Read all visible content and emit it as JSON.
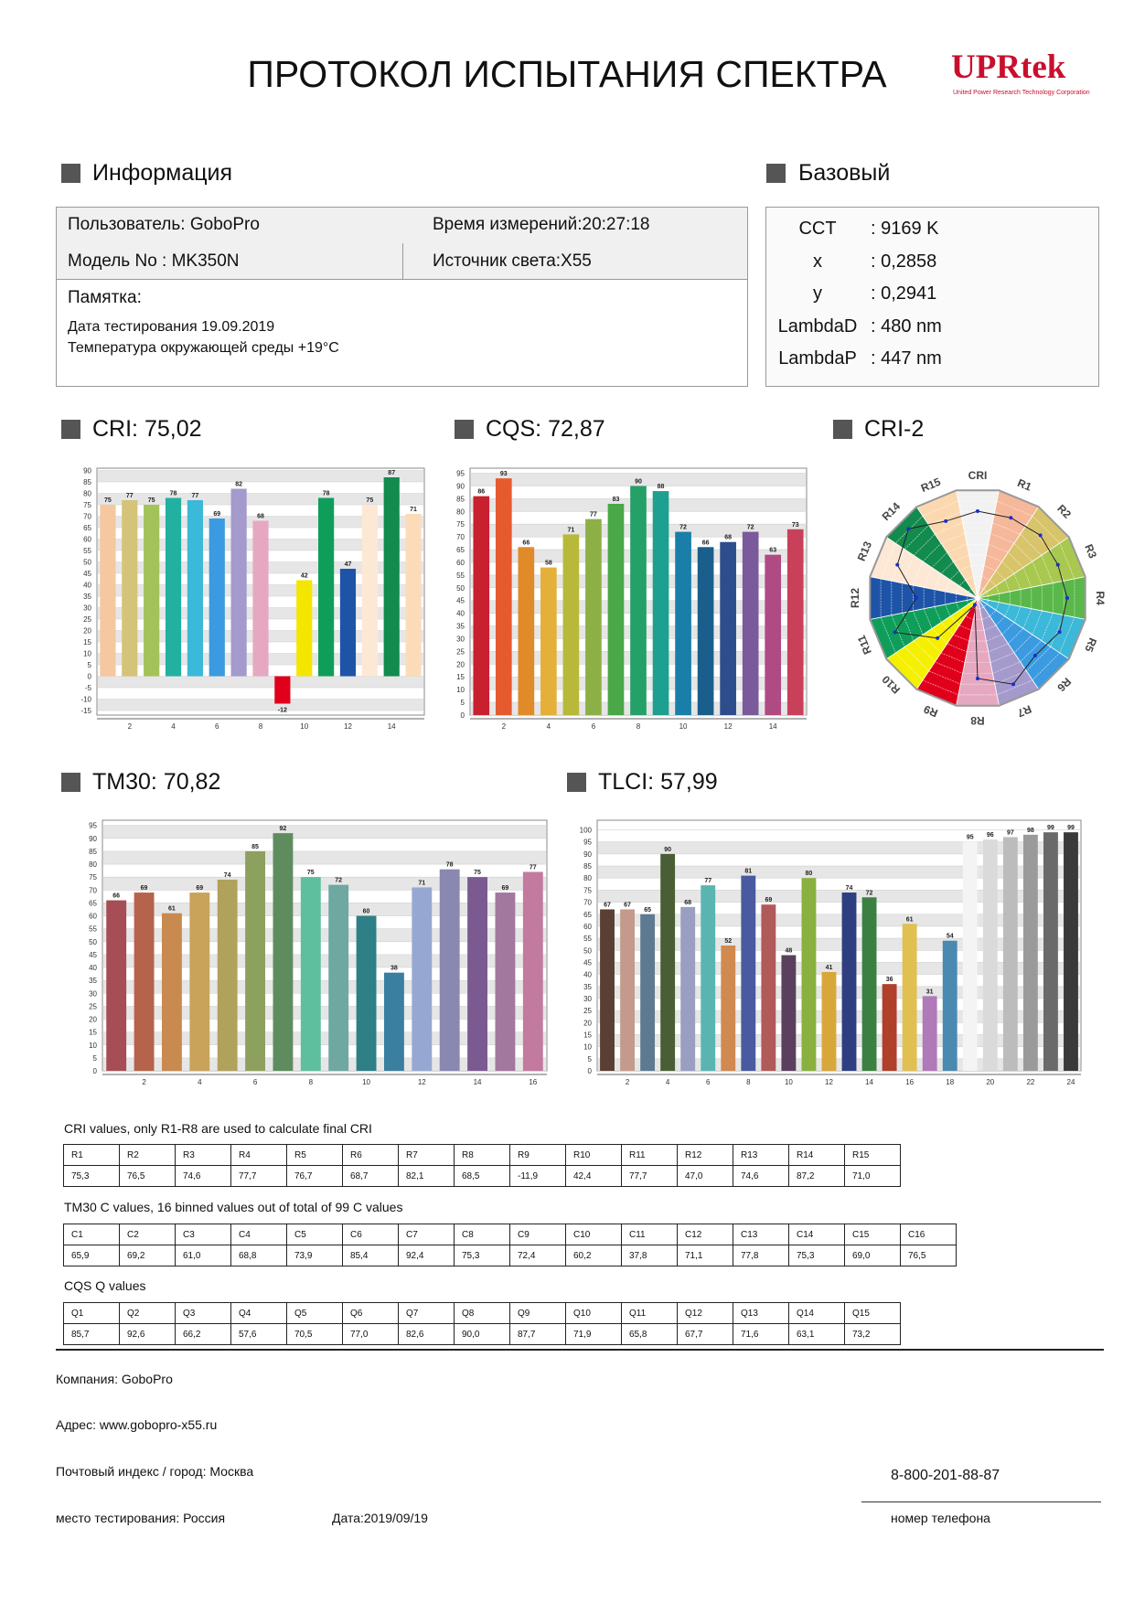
{
  "header": {
    "title": "ПРОТОКОЛ ИСПЫТАНИЯ СПЕКТРА",
    "logo": "UPRtek",
    "logo_sub": "United Power Research Technology Corporation"
  },
  "info": {
    "heading": "Информация",
    "user": "Пользователь:  GoboPro",
    "time": "Время измерений:20:27:18",
    "model": "Модель No :  MK350N",
    "source": "Источник света:X55",
    "memo": "Памятка:",
    "notes": [
      "Дата тестирования 19.09.2019",
      "Температура окружающей среды +19°C"
    ]
  },
  "basic": {
    "heading": "Базовый",
    "rows": [
      [
        "CCT",
        ": 9169 K"
      ],
      [
        "x",
        ": 0,2858"
      ],
      [
        "y",
        ": 0,2941"
      ],
      [
        "LambdaD",
        ": 480 nm"
      ],
      [
        "LambdaP",
        ": 447 nm"
      ]
    ]
  },
  "chart_data": [
    {
      "type": "bar",
      "title": "CRI: 75,02",
      "categories": [
        null,
        "2",
        null,
        "4",
        null,
        "6",
        null,
        "8",
        null,
        "10",
        null,
        "12",
        null,
        "14",
        null
      ],
      "values": [
        75,
        77,
        75,
        78,
        77,
        69,
        82,
        68,
        -12,
        42,
        78,
        47,
        75,
        87,
        71
      ],
      "colors": [
        "#f5c8a0",
        "#d4c47a",
        "#a3c25a",
        "#22b0a0",
        "#3cb8d8",
        "#3a9be0",
        "#a59acc",
        "#e6a8c0",
        "#e0001b",
        "#f5e600",
        "#0f9e5a",
        "#1e54a8",
        "#fde8d6",
        "#138a4e",
        "#fcdcb8"
      ],
      "ylim": [
        -17,
        91
      ],
      "yticks": [
        -15,
        -10,
        -5,
        0,
        5,
        10,
        15,
        20,
        25,
        30,
        35,
        40,
        45,
        50,
        55,
        60,
        65,
        70,
        75,
        80,
        85,
        90
      ],
      "grid": true
    },
    {
      "type": "bar",
      "title": "CQS: 72,87",
      "categories": [
        null,
        "2",
        null,
        "4",
        null,
        "6",
        null,
        "8",
        null,
        "10",
        null,
        "12",
        null,
        "14",
        null
      ],
      "values": [
        86,
        93,
        66,
        58,
        71,
        77,
        83,
        90,
        88,
        72,
        66,
        68,
        72,
        63,
        73
      ],
      "colors": [
        "#c8202f",
        "#e55b2f",
        "#e08a2a",
        "#e4b03a",
        "#b8b83a",
        "#8cb046",
        "#4aa848",
        "#24a068",
        "#1ea090",
        "#1a7fa8",
        "#1a5f8c",
        "#2e4d8c",
        "#7a5a9a",
        "#b04a82",
        "#c8405a"
      ],
      "ylim": [
        0,
        97
      ],
      "yticks": [
        0,
        5,
        10,
        15,
        20,
        25,
        30,
        35,
        40,
        45,
        50,
        55,
        60,
        65,
        70,
        75,
        80,
        85,
        90,
        95
      ],
      "grid": true
    },
    {
      "type": "radar",
      "title": "CRI-2",
      "categories": [
        "CRI",
        "R1",
        "R2",
        "R3",
        "R4",
        "R5",
        "R6",
        "R7",
        "R8",
        "R9",
        "R10",
        "R11",
        "R12",
        "R13",
        "R14",
        "R15"
      ],
      "values": [
        75,
        75,
        77,
        75,
        78,
        77,
        69,
        82,
        68,
        -12,
        42,
        78,
        47,
        75,
        87,
        71
      ],
      "colors": [
        "#f2f2f2",
        "#f5b89a",
        "#d8c46a",
        "#a8c850",
        "#5ab84a",
        "#3cb8d8",
        "#3a9be0",
        "#a59acc",
        "#e6a8c0",
        "#e0001b",
        "#f5f000",
        "#0f9e5a",
        "#1e54a8",
        "#fde8d6",
        "#138a4e",
        "#fcd8b0"
      ],
      "rlim": [
        -20,
        100
      ]
    },
    {
      "type": "bar",
      "title": "TM30: 70,82",
      "categories": [
        null,
        "2",
        null,
        "4",
        null,
        "6",
        null,
        "8",
        null,
        "10",
        null,
        "12",
        null,
        "14",
        null,
        "16"
      ],
      "values": [
        66,
        69,
        61,
        69,
        74,
        85,
        92,
        75,
        72,
        60,
        38,
        71,
        78,
        75,
        69,
        77
      ],
      "colors": [
        "#a64d55",
        "#b5634a",
        "#c98a4f",
        "#c9a35a",
        "#b0a25a",
        "#8ea05e",
        "#5f8c5f",
        "#5dbf9e",
        "#6fa8a0",
        "#2e7f86",
        "#3a7fa0",
        "#96a8d2",
        "#8a88b0",
        "#7b5a92",
        "#a2789e",
        "#c27a9e"
      ],
      "ylim": [
        0,
        97
      ],
      "yticks": [
        0,
        5,
        10,
        15,
        20,
        25,
        30,
        35,
        40,
        45,
        50,
        55,
        60,
        65,
        70,
        75,
        80,
        85,
        90,
        95
      ],
      "grid": true
    },
    {
      "type": "bar",
      "title": "TLCI: 57,99",
      "categories": [
        null,
        "2",
        null,
        "4",
        null,
        "6",
        null,
        "8",
        null,
        "10",
        null,
        "12",
        null,
        "14",
        null,
        "16",
        null,
        "18",
        null,
        "20",
        null,
        "22",
        null,
        "24"
      ],
      "values": [
        67,
        67,
        65,
        90,
        68,
        77,
        52,
        81,
        69,
        48,
        80,
        41,
        74,
        72,
        36,
        61,
        31,
        54,
        95,
        96,
        97,
        98,
        99,
        99
      ],
      "colors": [
        "#5a3f34",
        "#c49a8c",
        "#5e7a90",
        "#4a5e35",
        "#9a9ec0",
        "#5ab5b0",
        "#d08a50",
        "#4a5aa0",
        "#b05a5a",
        "#5a3f5e",
        "#8ab040",
        "#d8a73a",
        "#2f3e80",
        "#3b8040",
        "#b0402a",
        "#e0c050",
        "#b07ab8",
        "#4a8ab0",
        "#f4f4f4",
        "#dadada",
        "#bcbcbc",
        "#9a9a9a",
        "#6a6a6a",
        "#3a3a3a"
      ],
      "ylim": [
        0,
        104
      ],
      "yticks": [
        0,
        5,
        10,
        15,
        20,
        25,
        30,
        35,
        40,
        45,
        50,
        55,
        60,
        65,
        70,
        75,
        80,
        85,
        90,
        95,
        100
      ],
      "grid": true
    }
  ],
  "tables": [
    {
      "caption": "CRI values, only R1-R8 are used to calculate final CRI",
      "headers": [
        "R1",
        "R2",
        "R3",
        "R4",
        "R5",
        "R6",
        "R7",
        "R8",
        "R9",
        "R10",
        "R11",
        "R12",
        "R13",
        "R14",
        "R15"
      ],
      "values": [
        "75,3",
        "76,5",
        "74,6",
        "77,7",
        "76,7",
        "68,7",
        "82,1",
        "68,5",
        "-11,9",
        "42,4",
        "77,7",
        "47,0",
        "74,6",
        "87,2",
        "71,0"
      ]
    },
    {
      "caption": "TM30 C values, 16 binned values out of total of 99 C values",
      "headers": [
        "C1",
        "C2",
        "C3",
        "C4",
        "C5",
        "C6",
        "C7",
        "C8",
        "C9",
        "C10",
        "C11",
        "C12",
        "C13",
        "C14",
        "C15",
        "C16"
      ],
      "values": [
        "65,9",
        "69,2",
        "61,0",
        "68,8",
        "73,9",
        "85,4",
        "92,4",
        "75,3",
        "72,4",
        "60,2",
        "37,8",
        "71,1",
        "77,8",
        "75,3",
        "69,0",
        "76,5"
      ]
    },
    {
      "caption": "CQS Q values",
      "headers": [
        "Q1",
        "Q2",
        "Q3",
        "Q4",
        "Q5",
        "Q6",
        "Q7",
        "Q8",
        "Q9",
        "Q10",
        "Q11",
        "Q12",
        "Q13",
        "Q14",
        "Q15"
      ],
      "values": [
        "85,7",
        "92,6",
        "66,2",
        "57,6",
        "70,5",
        "77,0",
        "82,6",
        "90,0",
        "87,7",
        "71,9",
        "65,8",
        "67,7",
        "71,6",
        "63,1",
        "73,2"
      ]
    }
  ],
  "footer": {
    "company": "Компания:  GoboPro",
    "address": "Адрес:  www.gobopro-x55.ru",
    "city": "Почтовый индекс / город:  Москва",
    "place": "место тестирования:  Россия",
    "date": "Дата:2019/09/19",
    "phone": "8-800-201-88-87",
    "phone_label": "номер телефона"
  }
}
